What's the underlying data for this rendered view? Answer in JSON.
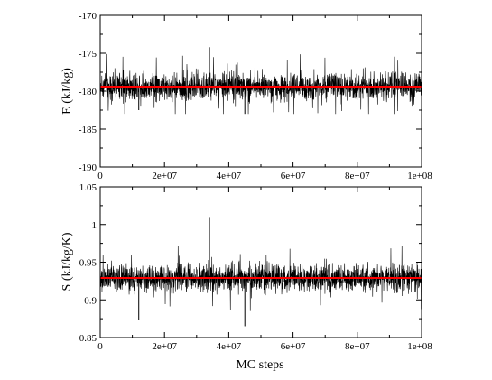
{
  "chart_data": [
    {
      "type": "line",
      "ylabel": "E (kJ/kg)",
      "xlabel": "",
      "xlim": [
        0,
        100000000
      ],
      "ylim": [
        -190,
        -170
      ],
      "xticks": [
        0,
        20000000,
        40000000,
        60000000,
        80000000,
        100000000
      ],
      "xtick_labels": [
        "0",
        "2e+07",
        "4e+07",
        "6e+07",
        "8e+07",
        "1e+08"
      ],
      "yticks": [
        -190,
        -185,
        -180,
        -175,
        -170
      ],
      "ytick_labels": [
        "-190",
        "-185",
        "-180",
        "-175",
        "-170"
      ],
      "grid": false,
      "series": [
        {
          "kind": "noisy-trace",
          "color": "#000000",
          "mean": -179.4,
          "band": [
            -181.5,
            -177.5
          ],
          "min": -183.0,
          "max": -174.2,
          "spikes": [
            {
              "x": 34000000,
              "y": -174.2
            },
            {
              "x": 45000000,
              "y": -183.0
            },
            {
              "x": 12000000,
              "y": -182.5
            }
          ]
        },
        {
          "kind": "mean-line",
          "color": "#ff0000",
          "values": [
            [
              0,
              -179.4
            ],
            [
              100000000,
              -179.4
            ]
          ]
        }
      ]
    },
    {
      "type": "line",
      "ylabel": "S (kJ/kg/K)",
      "xlabel": "MC steps",
      "xlim": [
        0,
        100000000
      ],
      "ylim": [
        0.85,
        1.05
      ],
      "xticks": [
        0,
        20000000,
        40000000,
        60000000,
        80000000,
        100000000
      ],
      "xtick_labels": [
        "0",
        "2e+07",
        "4e+07",
        "6e+07",
        "8e+07",
        "1e+08"
      ],
      "yticks": [
        0.85,
        0.9,
        0.95,
        1.0,
        1.05
      ],
      "ytick_labels": [
        "0.85",
        "0.9",
        "0.95",
        "1",
        "1.05"
      ],
      "grid": false,
      "series": [
        {
          "kind": "noisy-trace",
          "color": "#000000",
          "mean": 0.929,
          "band": [
            0.91,
            0.95
          ],
          "min": 0.865,
          "max": 1.01,
          "spikes": [
            {
              "x": 34000000,
              "y": 1.01
            },
            {
              "x": 45000000,
              "y": 0.865
            },
            {
              "x": 12000000,
              "y": 0.873
            }
          ]
        },
        {
          "kind": "mean-line",
          "color": "#ff0000",
          "values": [
            [
              0,
              0.929
            ],
            [
              100000000,
              0.929
            ]
          ]
        }
      ]
    }
  ]
}
